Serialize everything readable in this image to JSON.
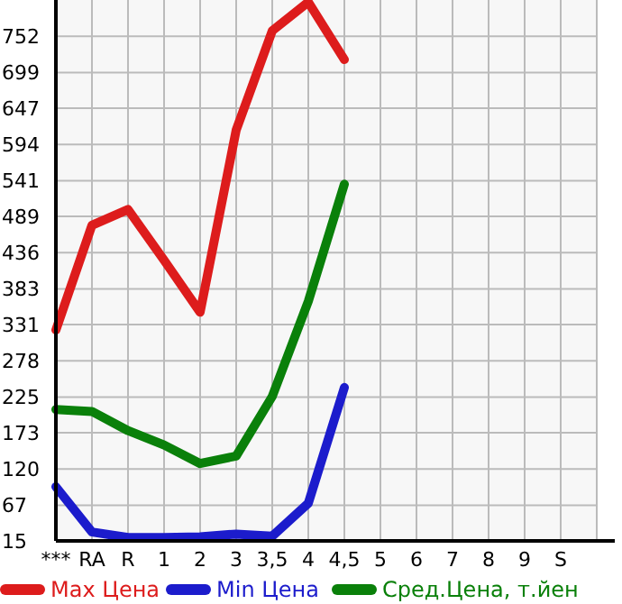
{
  "chart_data": {
    "type": "line",
    "categories": [
      "***",
      "RA",
      "R",
      "1",
      "2",
      "3",
      "3,5",
      "4",
      "4,5",
      "5",
      "6",
      "7",
      "8",
      "9",
      "S",
      null
    ],
    "series": [
      {
        "name": "Max Цена",
        "color": "#dd1c1c",
        "values": [
          323,
          476,
          499,
          425,
          349,
          615,
          760,
          802,
          718,
          null,
          null,
          null,
          null,
          null,
          null,
          null
        ]
      },
      {
        "name": "Min Цена",
        "color": "#1c1ccc",
        "values": [
          94,
          28,
          20,
          20,
          21,
          25,
          22,
          70,
          239,
          null,
          null,
          null,
          null,
          null,
          null,
          null
        ]
      },
      {
        "name": "Сред.Цена, т.йен",
        "color": "#0a800a",
        "values": [
          207,
          204,
          176,
          155,
          128,
          139,
          226,
          365,
          536,
          null,
          null,
          null,
          null,
          null,
          null,
          null
        ]
      }
    ],
    "ylim": [
      15,
      805
    ],
    "yticks": [
      15,
      67,
      120,
      173,
      225,
      278,
      331,
      383,
      436,
      489,
      541,
      594,
      647,
      699,
      752
    ],
    "grid": true,
    "legend": "bottom",
    "marker": "none",
    "line_style": "solid"
  }
}
